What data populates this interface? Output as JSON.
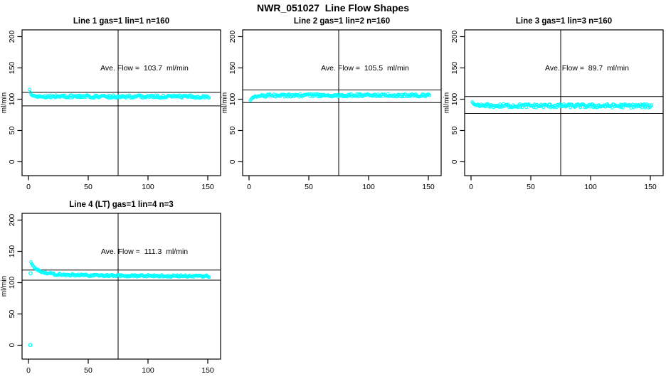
{
  "page_title": "NWR_051027  Line Flow Shapes",
  "colors": {
    "marker": "#00FFFF",
    "axis": "#000000",
    "background": "#FFFFFF"
  },
  "chart_data": [
    {
      "type": "scatter",
      "title": "Line 1 gas=1 lin=1 n=160",
      "ylabel": "ml/min",
      "xlabel": "",
      "xlim": [
        0,
        150
      ],
      "ylim": [
        0,
        200
      ],
      "xticks": [
        0,
        50,
        100,
        150
      ],
      "yticks": [
        0,
        50,
        100,
        150,
        200
      ],
      "grid": false,
      "annotation": "Ave. Flow =  103.7  ml/min",
      "ave_flow_ml_min": 103.7,
      "n_runs": 160,
      "vline_x": 75,
      "hlines": [
        110.9,
        89.3
      ],
      "series": {
        "name": "line1-flow",
        "keypoints": [
          [
            1,
            115.5
          ],
          [
            2,
            108
          ],
          [
            3,
            106
          ],
          [
            5,
            104.8
          ],
          [
            10,
            104.5
          ],
          [
            40,
            104.4
          ],
          [
            80,
            104.3
          ],
          [
            120,
            104.1
          ],
          [
            151,
            103.9
          ]
        ],
        "jitter": 2.2,
        "n": 220
      },
      "extra_points": []
    },
    {
      "type": "scatter",
      "title": "Line 2 gas=1 lin=2 n=160",
      "ylabel": "ml/min",
      "xlabel": "",
      "xlim": [
        0,
        150
      ],
      "ylim": [
        0,
        200
      ],
      "xticks": [
        0,
        50,
        100,
        150
      ],
      "yticks": [
        0,
        50,
        100,
        150,
        200
      ],
      "grid": false,
      "annotation": "Ave. Flow =  105.5  ml/min",
      "ave_flow_ml_min": 105.5,
      "n_runs": 160,
      "vline_x": 75,
      "hlines": [
        114.8,
        94.6
      ],
      "series": {
        "name": "line2-flow",
        "keypoints": [
          [
            1,
            98
          ],
          [
            2,
            100.5
          ],
          [
            3,
            102.5
          ],
          [
            5,
            104
          ],
          [
            8,
            105
          ],
          [
            15,
            105.7
          ],
          [
            40,
            106
          ],
          [
            151,
            106.2
          ]
        ],
        "jitter": 2.2,
        "n": 220
      },
      "extra_points": []
    },
    {
      "type": "scatter",
      "title": "Line 3 gas=1 lin=3 n=160",
      "ylabel": "ml/min",
      "xlabel": "",
      "xlim": [
        0,
        150
      ],
      "ylim": [
        0,
        200
      ],
      "xticks": [
        0,
        50,
        100,
        150
      ],
      "yticks": [
        0,
        50,
        100,
        150,
        200
      ],
      "grid": false,
      "annotation": "Ave. Flow =  89.7  ml/min",
      "ave_flow_ml_min": 89.7,
      "n_runs": 160,
      "vline_x": 75,
      "hlines": [
        104.2,
        77.3
      ],
      "series": {
        "name": "line3-flow",
        "keypoints": [
          [
            1,
            95.5
          ],
          [
            2,
            92.5
          ],
          [
            4,
            90.8
          ],
          [
            8,
            90
          ],
          [
            20,
            89.6
          ],
          [
            60,
            89.4
          ],
          [
            151,
            89.2
          ]
        ],
        "jitter": 3.0,
        "n": 220
      },
      "extra_points": []
    },
    {
      "type": "scatter",
      "title": "Line 4 (LT) gas=1 lin=4 n=3",
      "ylabel": "ml/min",
      "xlabel": "",
      "xlim": [
        0,
        150
      ],
      "ylim": [
        0,
        200
      ],
      "xticks": [
        0,
        50,
        100,
        150
      ],
      "yticks": [
        0,
        50,
        100,
        150,
        200
      ],
      "grid": false,
      "annotation": "Ave. Flow =  111.3  ml/min",
      "ave_flow_ml_min": 111.3,
      "n_runs": 3,
      "vline_x": 75,
      "hlines": [
        120.2,
        104.0
      ],
      "series": {
        "name": "line4-flow",
        "keypoints": [
          [
            2,
            133
          ],
          [
            3,
            128.5
          ],
          [
            5,
            124
          ],
          [
            8,
            120
          ],
          [
            12,
            116.8
          ],
          [
            17,
            114.5
          ],
          [
            24,
            113.2
          ],
          [
            32,
            112.5
          ],
          [
            45,
            111.8
          ],
          [
            70,
            111.3
          ],
          [
            110,
            110.8
          ],
          [
            151,
            110.4
          ]
        ],
        "jitter": 1.6,
        "n": 220
      },
      "extra_points": [
        [
          1.5,
          0.3
        ],
        [
          1.8,
          115
        ]
      ]
    }
  ]
}
